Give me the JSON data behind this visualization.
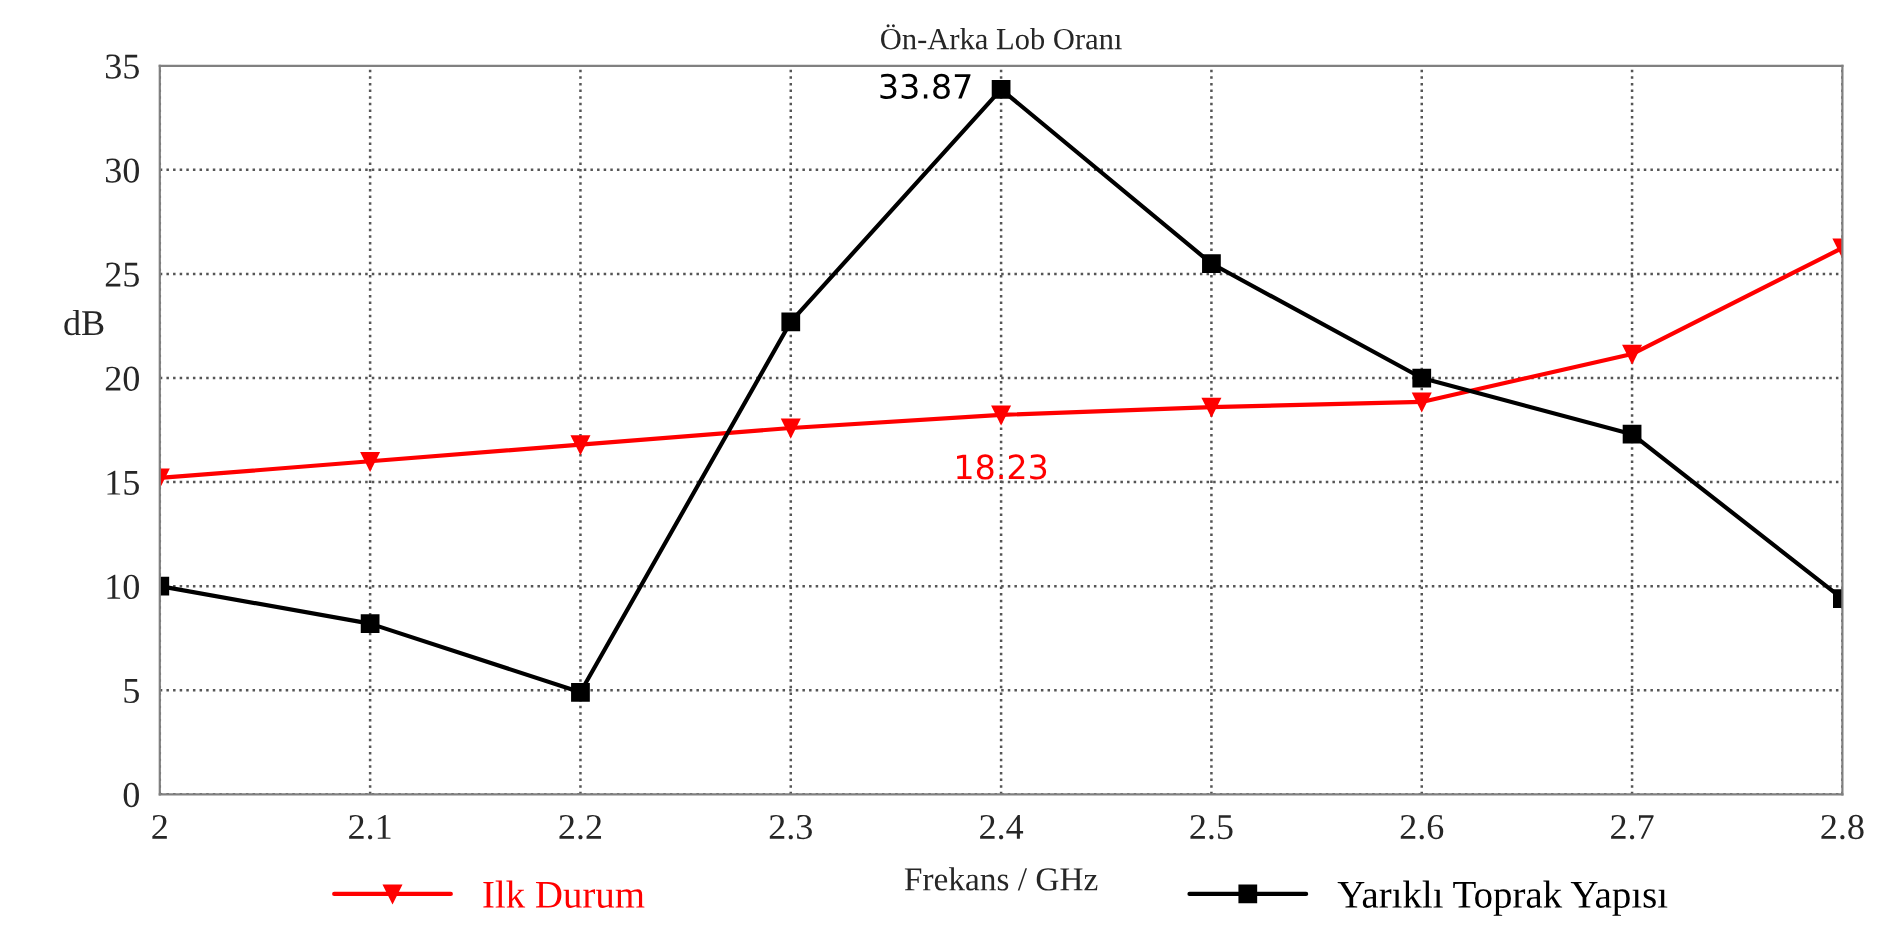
{
  "chart_data": {
    "type": "line",
    "title": "Ön-Arka Lob Oranı",
    "xlabel": "Frekans / GHz",
    "ylabel": "dB",
    "x": [
      2,
      2.1,
      2.2,
      2.3,
      2.4,
      2.5,
      2.6,
      2.7,
      2.8
    ],
    "series": [
      {
        "name": "Ilk Durum",
        "color": "#ff0000",
        "marker": "triangle",
        "values": [
          15.2,
          16.0,
          16.8,
          17.6,
          18.23,
          18.6,
          18.85,
          21.15,
          26.25
        ]
      },
      {
        "name": "Yarıklı Toprak Yapısı",
        "color": "#000000",
        "marker": "square",
        "values": [
          10.0,
          8.2,
          4.9,
          22.7,
          33.87,
          25.5,
          20.0,
          17.3,
          9.4
        ]
      }
    ],
    "annotations": [
      {
        "text": "33.87",
        "x": 2.4,
        "y": 33.87
      },
      {
        "text": "18.23",
        "x": 2.4,
        "y": 18.23
      }
    ],
    "xlim": [
      2,
      2.8
    ],
    "xticks": [
      2,
      2.1,
      2.2,
      2.3,
      2.4,
      2.5,
      2.6,
      2.7,
      2.8
    ],
    "ylim": [
      0,
      35
    ],
    "yticks": [
      0,
      5,
      10,
      15,
      20,
      25,
      30,
      35
    ],
    "grid": true,
    "legend": "bottom",
    "line_style": "solid"
  }
}
